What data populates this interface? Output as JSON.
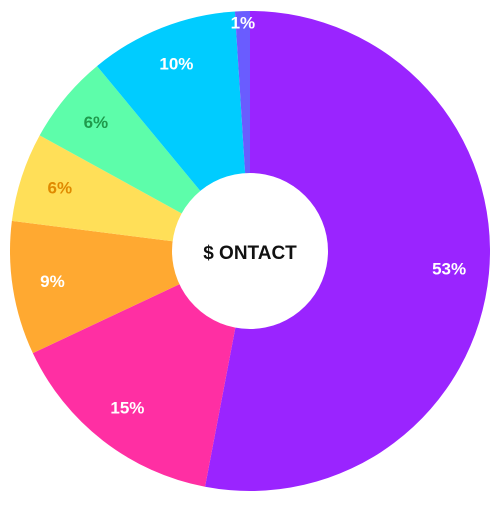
{
  "chart_data": {
    "type": "pie",
    "variant": "donut",
    "center_text": "$ ONTACT",
    "slices": [
      {
        "label": "53%",
        "value": 53,
        "color": "#9a24ff",
        "label_color": "#ffffff"
      },
      {
        "label": "15%",
        "value": 15,
        "color": "#ff2fa3",
        "label_color": "#ffffff"
      },
      {
        "label": "9%",
        "value": 9,
        "color": "#ffa931",
        "label_color": "#ffffff"
      },
      {
        "label": "6%",
        "value": 6,
        "color": "#ffdf58",
        "label_color": "#e08a00"
      },
      {
        "label": "6%",
        "value": 6,
        "color": "#5dfdaa",
        "label_color": "#1f9a4c"
      },
      {
        "label": "10%",
        "value": 10,
        "color": "#00ccff",
        "label_color": "#ffffff"
      },
      {
        "label": "1%",
        "value": 1,
        "color": "#6a5cff",
        "label_color": "#ffffff"
      }
    ]
  }
}
